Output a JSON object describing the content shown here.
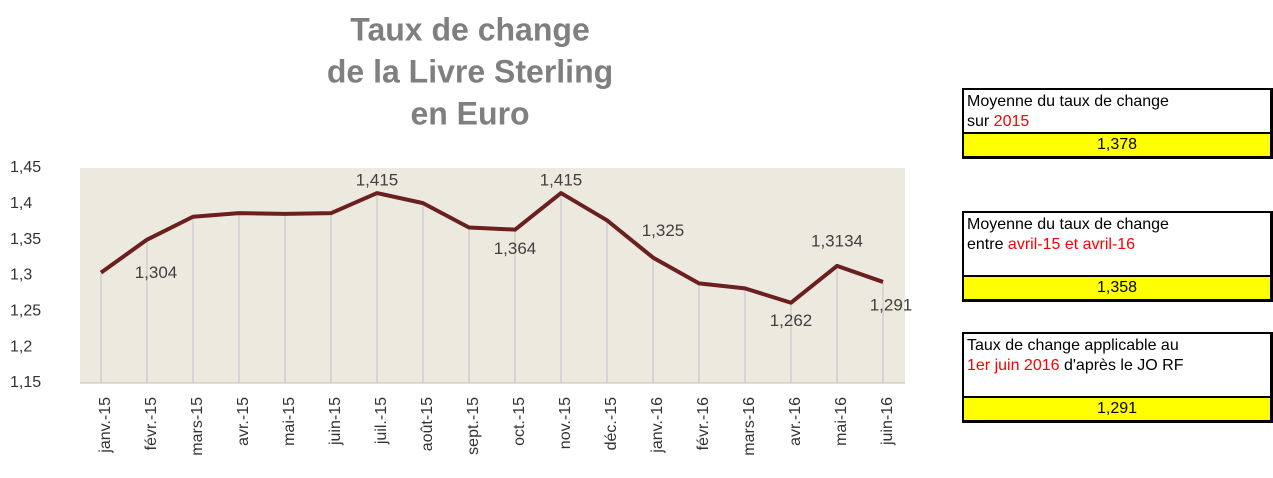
{
  "chart_data": {
    "type": "line",
    "title": [
      "Taux de change",
      "de la Livre Sterling",
      "en Euro"
    ],
    "categories": [
      "janv.-15",
      "févr.-15",
      "mars-15",
      "avr.-15",
      "mai-15",
      "juin-15",
      "juil.-15",
      "août-15",
      "sept.-15",
      "oct.-15",
      "nov.-15",
      "déc.-15",
      "janv.-16",
      "févr.-16",
      "mars-16",
      "avr.-16",
      "mai-16",
      "juin-16"
    ],
    "values": [
      1.304,
      1.35,
      1.382,
      1.387,
      1.386,
      1.387,
      1.415,
      1.401,
      1.367,
      1.364,
      1.415,
      1.377,
      1.325,
      1.289,
      1.282,
      1.262,
      1.3134,
      1.291
    ],
    "value_labels": [
      "1,304",
      null,
      null,
      null,
      null,
      null,
      "1,415",
      null,
      null,
      "1,364",
      "1,415",
      null,
      "1,325",
      null,
      null,
      "1,262",
      "1,3134",
      "1,291"
    ],
    "color": "#6b1f1f",
    "ylim": [
      1.15,
      1.45
    ],
    "yticks": [
      {
        "value": 1.15,
        "label": "1,15"
      },
      {
        "value": 1.2,
        "label": "1,2"
      },
      {
        "value": 1.25,
        "label": "1,25"
      },
      {
        "value": 1.3,
        "label": "1,3"
      },
      {
        "value": 1.35,
        "label": "1,35"
      },
      {
        "value": 1.4,
        "label": "1,4"
      },
      {
        "value": 1.45,
        "label": "1,45"
      }
    ]
  },
  "boxes": [
    {
      "lines": [
        [
          {
            "text": "Moyenne du taux de change"
          }
        ],
        [
          {
            "text": "sur "
          },
          {
            "text": "2015",
            "color": "#ff0000"
          }
        ]
      ],
      "value": "1,378"
    },
    {
      "lines": [
        [
          {
            "text": "Moyenne du taux de change"
          }
        ],
        [
          {
            "text": "entre "
          },
          {
            "text": "avril-15 et avril-16",
            "color": "#ff0000"
          }
        ]
      ],
      "value": "1,358"
    },
    {
      "lines": [
        [
          {
            "text": "Taux de change applicable au"
          }
        ],
        [
          {
            "text": "1er juin 2016",
            "color": "#ff0000"
          },
          {
            "text": " d'après le JO RF"
          }
        ]
      ],
      "value": "1,291"
    }
  ]
}
